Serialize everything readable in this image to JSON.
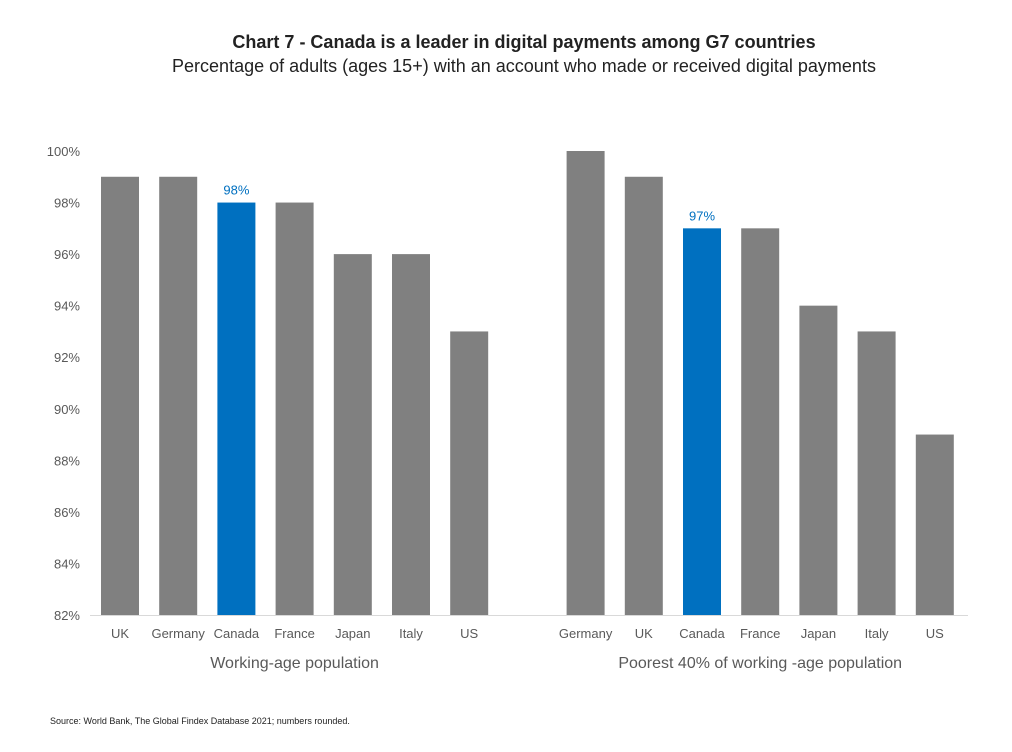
{
  "chart_data": {
    "type": "bar",
    "title": "Chart 7 - Canada is a leader in digital payments among G7 countries",
    "subtitle": "Percentage of adults (ages 15+) with an account who made or received digital payments",
    "ylim": [
      82,
      100
    ],
    "yticks": [
      "82%",
      "84%",
      "86%",
      "88%",
      "90%",
      "92%",
      "94%",
      "96%",
      "98%",
      "100%"
    ],
    "grid": false,
    "highlight_color": "#0070C0",
    "bar_color": "#808080",
    "groups": [
      {
        "label": "Working-age population",
        "categories": [
          "UK",
          "Germany",
          "Canada",
          "France",
          "Japan",
          "Italy",
          "US"
        ],
        "values": [
          99,
          99,
          98,
          98,
          96,
          96,
          93
        ],
        "highlight": "Canada",
        "highlight_label": "98%"
      },
      {
        "label": "Poorest 40% of working -age population",
        "categories": [
          "Germany",
          "UK",
          "Canada",
          "France",
          "Japan",
          "Italy",
          "US"
        ],
        "values": [
          100,
          99,
          97,
          97,
          94,
          93,
          89
        ],
        "highlight": "Canada",
        "highlight_label": "97%"
      }
    ],
    "source": "Source: World Bank, The Global Findex Database 2021; numbers rounded."
  }
}
